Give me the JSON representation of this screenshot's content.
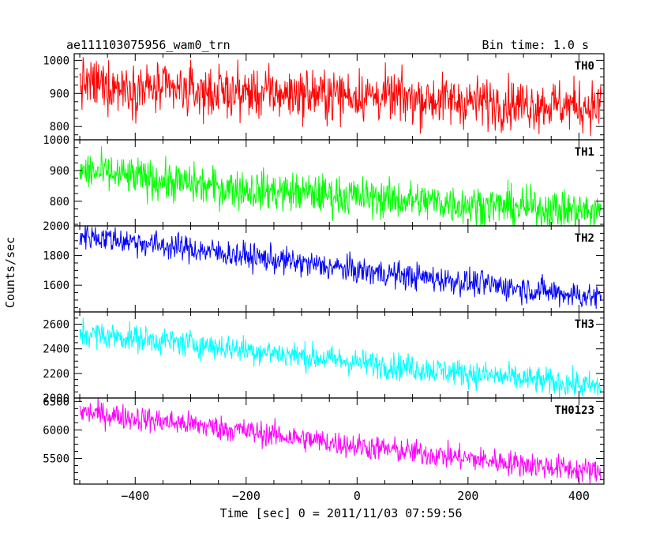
{
  "header": {
    "title": "ae111103075956_wam0_trn",
    "bin_time": "Bin time: 1.0 s"
  },
  "chart_data": {
    "type": "line",
    "xlabel": "Time [sec] 0 = 2011/11/03 07:59:56",
    "ylabel": "Counts/sec",
    "xlim": [
      -510,
      445
    ],
    "x_ticks": [
      -400,
      -200,
      0,
      200,
      400
    ],
    "x_tick_labels": [
      "−400",
      "−200",
      "0",
      "200",
      "400"
    ],
    "x_range": [
      -500,
      440
    ],
    "x_step": 1,
    "grid": false,
    "panels": [
      {
        "name": "TH0",
        "color": "#ff0000",
        "ylim": [
          760,
          1020
        ],
        "y_ticks": [
          800,
          900,
          1000
        ],
        "trend": [
          [
            -500,
            930
          ],
          [
            -300,
            905
          ],
          [
            0,
            895
          ],
          [
            200,
            875
          ],
          [
            440,
            860
          ]
        ],
        "noise": 38
      },
      {
        "name": "TH1",
        "color": "#00ff00",
        "ylim": [
          720,
          1000
        ],
        "y_ticks": [
          800,
          900,
          1000
        ],
        "trend": [
          [
            -500,
            900
          ],
          [
            -250,
            845
          ],
          [
            0,
            815
          ],
          [
            200,
            790
          ],
          [
            440,
            765
          ]
        ],
        "noise": 32
      },
      {
        "name": "TH2",
        "color": "#0000ff",
        "ylim": [
          1420,
          2000
        ],
        "y_ticks": [
          1600,
          1800,
          2000
        ],
        "trend": [
          [
            -500,
            1940
          ],
          [
            -250,
            1820
          ],
          [
            0,
            1700
          ],
          [
            200,
            1620
          ],
          [
            440,
            1515
          ]
        ],
        "noise": 45
      },
      {
        "name": "TH3",
        "color": "#00ffff",
        "ylim": [
          2000,
          2700
        ],
        "y_ticks": [
          2000,
          2200,
          2400,
          2600
        ],
        "trend": [
          [
            -500,
            2530
          ],
          [
            -250,
            2420
          ],
          [
            0,
            2290
          ],
          [
            200,
            2200
          ],
          [
            440,
            2090
          ]
        ],
        "noise": 55
      },
      {
        "name": "TH0123",
        "color": "#ff00ff",
        "ylim": [
          5050,
          6560
        ],
        "y_ticks": [
          5500,
          6000,
          6500
        ],
        "trend": [
          [
            -500,
            6320
          ],
          [
            -250,
            6040
          ],
          [
            0,
            5720
          ],
          [
            200,
            5500
          ],
          [
            440,
            5260
          ]
        ],
        "noise": 110
      }
    ]
  }
}
